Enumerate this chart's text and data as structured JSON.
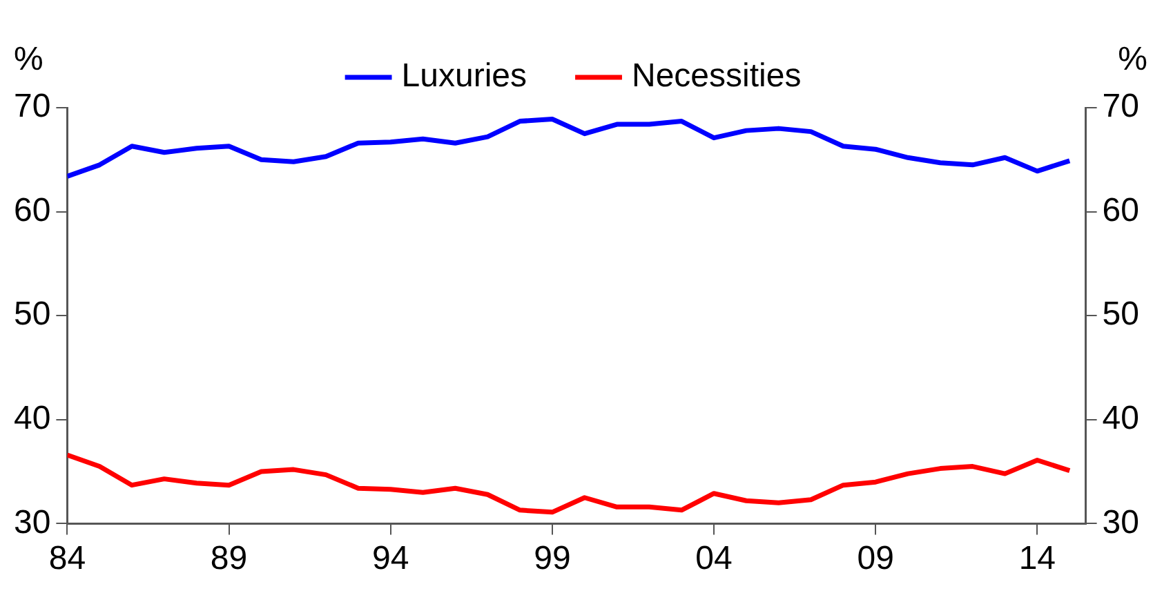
{
  "chart_data": {
    "type": "line",
    "x": [
      1984,
      1985,
      1986,
      1987,
      1988,
      1989,
      1990,
      1991,
      1992,
      1993,
      1994,
      1995,
      1996,
      1997,
      1998,
      1999,
      2000,
      2001,
      2002,
      2003,
      2004,
      2005,
      2006,
      2007,
      2008,
      2009,
      2010,
      2011,
      2012,
      2013,
      2014,
      2015
    ],
    "series": [
      {
        "name": "Luxuries",
        "color": "#0000ff",
        "values": [
          63.4,
          64.5,
          66.3,
          65.7,
          66.1,
          66.3,
          65.0,
          64.8,
          65.3,
          66.6,
          66.7,
          67.0,
          66.6,
          67.2,
          68.7,
          68.9,
          67.5,
          68.4,
          68.4,
          68.7,
          67.1,
          67.8,
          68.0,
          67.7,
          66.3,
          66.0,
          65.2,
          64.7,
          64.5,
          65.2,
          63.9,
          64.9
        ]
      },
      {
        "name": "Necessities",
        "color": "#ff0000",
        "values": [
          36.6,
          35.5,
          33.7,
          34.3,
          33.9,
          33.7,
          35.0,
          35.2,
          34.7,
          33.4,
          33.3,
          33.0,
          33.4,
          32.8,
          31.3,
          31.1,
          32.5,
          31.6,
          31.6,
          31.3,
          32.9,
          32.2,
          32.0,
          32.3,
          33.7,
          34.0,
          34.8,
          35.3,
          35.5,
          34.8,
          36.1,
          35.1
        ]
      }
    ],
    "ylabel": "%",
    "y2label": "%",
    "xlim": [
      1984,
      2015.5
    ],
    "xticks": [
      {
        "value": 1984,
        "label": "84"
      },
      {
        "value": 1989,
        "label": "89"
      },
      {
        "value": 1994,
        "label": "94"
      },
      {
        "value": 1999,
        "label": "99"
      },
      {
        "value": 2004,
        "label": "04"
      },
      {
        "value": 2009,
        "label": "09"
      },
      {
        "value": 2014,
        "label": "14"
      }
    ],
    "ylim": [
      30,
      70
    ],
    "yticks": [
      30,
      40,
      50,
      60,
      70
    ],
    "y2lim": [
      30,
      70
    ],
    "y2ticks": [
      30,
      40,
      50,
      60,
      70
    ],
    "legend": "top",
    "grid": false,
    "marker": "none",
    "line_style": "solid"
  }
}
